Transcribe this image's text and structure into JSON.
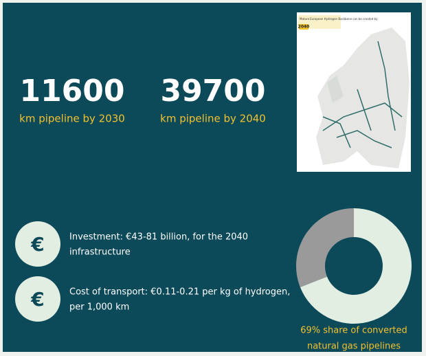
{
  "stats": [
    {
      "value": 11600,
      "label": "km pipeline by 2030"
    },
    {
      "value": 39700,
      "label": "km pipeline by 2040"
    }
  ],
  "map": {
    "title": "Mature European Hydrogen Backbone can be created by",
    "year": "2040"
  },
  "items": [
    {
      "icon": "€",
      "lines": [
        "Investment: €43-81 billion, for the 2040",
        "infrastructure"
      ]
    },
    {
      "icon": "€",
      "lines": [
        "Cost of transport: €0.11-0.21 per kg of hydrogen,",
        "per 1,000 km"
      ]
    }
  ],
  "chart_data": {
    "type": "donut",
    "values": [
      69,
      31
    ],
    "colors": [
      "#e3eee2",
      "#9a9a9a"
    ],
    "caption": [
      "69% share of converted",
      "natural gas pipelines"
    ]
  }
}
